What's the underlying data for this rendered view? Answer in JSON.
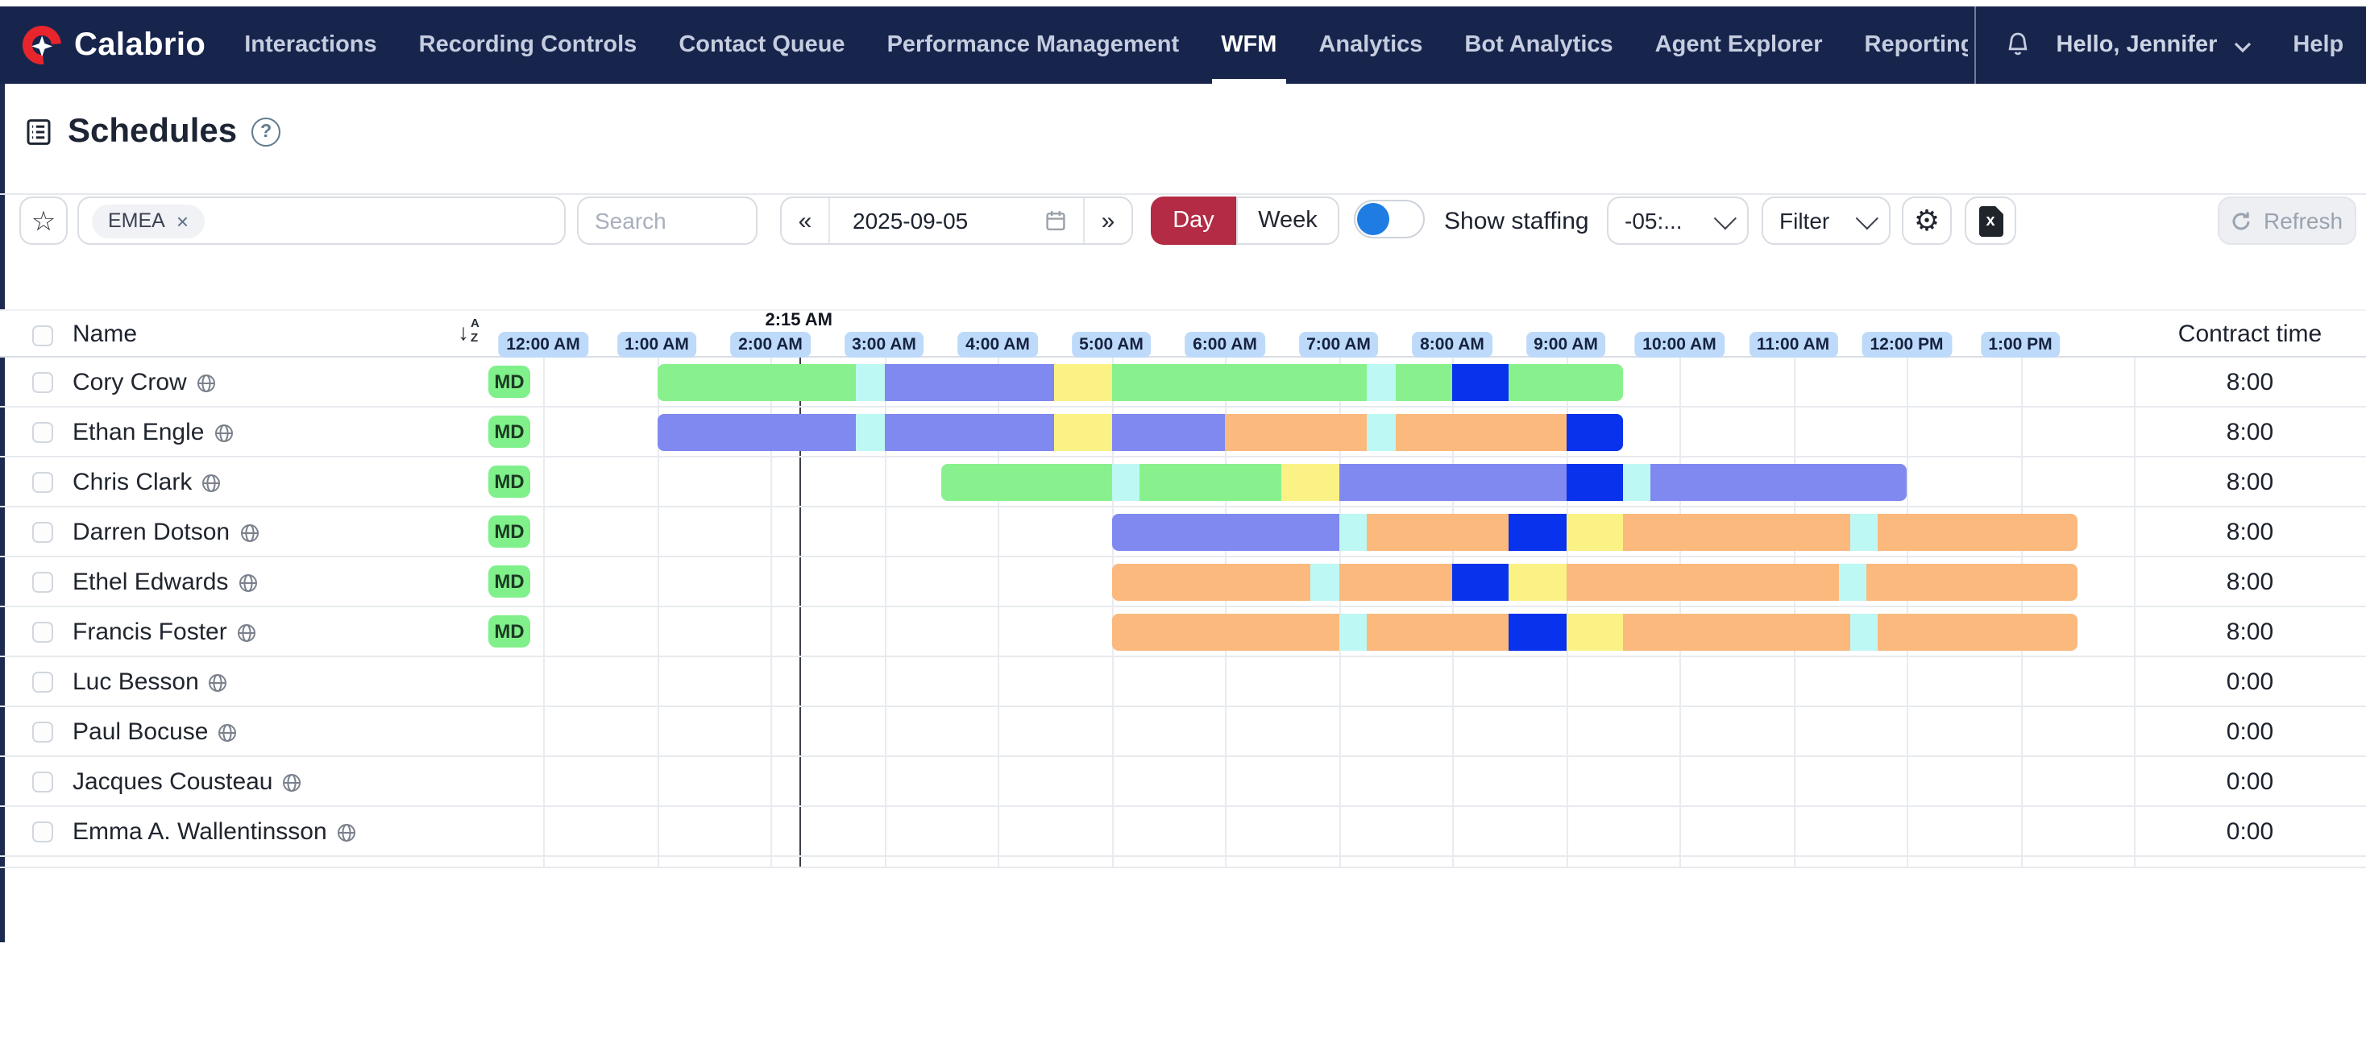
{
  "nav": {
    "brand": "Calabrio",
    "items": [
      {
        "label": "Interactions"
      },
      {
        "label": "Recording Controls"
      },
      {
        "label": "Contact Queue"
      },
      {
        "label": "Performance Management"
      },
      {
        "label": "WFM",
        "active": true
      },
      {
        "label": "Analytics"
      },
      {
        "label": "Bot Analytics"
      },
      {
        "label": "Agent Explorer"
      },
      {
        "label": "Reporting",
        "clipped": true
      }
    ],
    "greeting": "Hello, Jennifer",
    "help_label": "Help"
  },
  "page": {
    "title": "Schedules",
    "help_glyph": "?"
  },
  "toolbar": {
    "filter_chip": "EMEA",
    "chip_remove_glyph": "×",
    "search_placeholder": "Search",
    "prev_glyph": "«",
    "next_glyph": "»",
    "date_value": "2025-09-05",
    "day_label": "Day",
    "week_label": "Week",
    "show_staffing_label": "Show staffing",
    "timezone_value": "-05:...",
    "filter_label": "Filter",
    "star_glyph": "☆",
    "gear_glyph": "⚙",
    "refresh_label": "Refresh"
  },
  "table": {
    "name_header": "Name",
    "contract_header": "Contract time",
    "sort_arrow": "↓",
    "sort_a": "A",
    "sort_z": "Z",
    "time_labels": [
      "12:00 AM",
      "1:00 AM",
      "2:00 AM",
      "3:00 AM",
      "4:00 AM",
      "5:00 AM",
      "6:00 AM",
      "7:00 AM",
      "8:00 AM",
      "9:00 AM",
      "10:00 AM",
      "11:00 AM",
      "12:00 PM",
      "1:00 PM"
    ],
    "current_time_label": "2:15 AM",
    "current_time_hour": 2.25,
    "rows": [
      {
        "name": "Cory Crow",
        "badge": "MD",
        "contract": "8:00",
        "segments": [
          {
            "color": "green",
            "start": 1,
            "end": 2.75
          },
          {
            "color": "cyan",
            "start": 2.75,
            "end": 3
          },
          {
            "color": "periwinkle",
            "start": 3,
            "end": 4.5
          },
          {
            "color": "yellow",
            "start": 4.5,
            "end": 5
          },
          {
            "color": "green",
            "start": 5,
            "end": 7.25
          },
          {
            "color": "cyan",
            "start": 7.25,
            "end": 7.5
          },
          {
            "color": "green",
            "start": 7.5,
            "end": 8
          },
          {
            "color": "blue",
            "start": 8,
            "end": 8.5
          },
          {
            "color": "green",
            "start": 8.5,
            "end": 9.5
          }
        ]
      },
      {
        "name": "Ethan Engle",
        "badge": "MD",
        "contract": "8:00",
        "segments": [
          {
            "color": "periwinkle",
            "start": 1,
            "end": 2.75
          },
          {
            "color": "cyan",
            "start": 2.75,
            "end": 3
          },
          {
            "color": "periwinkle",
            "start": 3,
            "end": 4.5
          },
          {
            "color": "yellow",
            "start": 4.5,
            "end": 5
          },
          {
            "color": "periwinkle",
            "start": 5,
            "end": 6
          },
          {
            "color": "orange",
            "start": 6,
            "end": 7.25
          },
          {
            "color": "cyan",
            "start": 7.25,
            "end": 7.5
          },
          {
            "color": "orange",
            "start": 7.5,
            "end": 9
          },
          {
            "color": "blue",
            "start": 9,
            "end": 9.5
          }
        ]
      },
      {
        "name": "Chris Clark",
        "badge": "MD",
        "contract": "8:00",
        "segments": [
          {
            "color": "green",
            "start": 3.5,
            "end": 5
          },
          {
            "color": "cyan",
            "start": 5,
            "end": 5.25
          },
          {
            "color": "green",
            "start": 5.25,
            "end": 6.5
          },
          {
            "color": "yellow",
            "start": 6.5,
            "end": 7
          },
          {
            "color": "periwinkle",
            "start": 7,
            "end": 9
          },
          {
            "color": "blue",
            "start": 9,
            "end": 9.5
          },
          {
            "color": "cyan",
            "start": 9.5,
            "end": 9.75
          },
          {
            "color": "periwinkle",
            "start": 9.75,
            "end": 12
          }
        ]
      },
      {
        "name": "Darren Dotson",
        "badge": "MD",
        "contract": "8:00",
        "segments": [
          {
            "color": "periwinkle",
            "start": 5,
            "end": 7
          },
          {
            "color": "cyan",
            "start": 7,
            "end": 7.25
          },
          {
            "color": "orange",
            "start": 7.25,
            "end": 8.5
          },
          {
            "color": "blue",
            "start": 8.5,
            "end": 9
          },
          {
            "color": "yellow",
            "start": 9,
            "end": 9.5
          },
          {
            "color": "orange",
            "start": 9.5,
            "end": 11.5
          },
          {
            "color": "cyan",
            "start": 11.5,
            "end": 11.75
          },
          {
            "color": "orange",
            "start": 11.75,
            "end": 13.5
          }
        ]
      },
      {
        "name": "Ethel Edwards",
        "badge": "MD",
        "contract": "8:00",
        "segments": [
          {
            "color": "orange",
            "start": 5,
            "end": 6.75
          },
          {
            "color": "cyan",
            "start": 6.75,
            "end": 7
          },
          {
            "color": "orange",
            "start": 7,
            "end": 8
          },
          {
            "color": "blue",
            "start": 8,
            "end": 8.5
          },
          {
            "color": "yellow",
            "start": 8.5,
            "end": 9
          },
          {
            "color": "orange",
            "start": 9,
            "end": 11.4
          },
          {
            "color": "cyan",
            "start": 11.4,
            "end": 11.65
          },
          {
            "color": "orange",
            "start": 11.65,
            "end": 13.5
          }
        ]
      },
      {
        "name": "Francis Foster",
        "badge": "MD",
        "contract": "8:00",
        "segments": [
          {
            "color": "orange",
            "start": 5,
            "end": 7
          },
          {
            "color": "cyan",
            "start": 7,
            "end": 7.25
          },
          {
            "color": "orange",
            "start": 7.25,
            "end": 8.5
          },
          {
            "color": "blue",
            "start": 8.5,
            "end": 9
          },
          {
            "color": "yellow",
            "start": 9,
            "end": 9.5
          },
          {
            "color": "orange",
            "start": 9.5,
            "end": 11.5
          },
          {
            "color": "cyan",
            "start": 11.5,
            "end": 11.75
          },
          {
            "color": "orange",
            "start": 11.75,
            "end": 13.5
          }
        ]
      },
      {
        "name": "Luc Besson",
        "badge": null,
        "contract": "0:00",
        "segments": []
      },
      {
        "name": "Paul Bocuse",
        "badge": null,
        "contract": "0:00",
        "segments": []
      },
      {
        "name": "Jacques Cousteau",
        "badge": null,
        "contract": "0:00",
        "segments": []
      },
      {
        "name": "Emma A. Wallentinsson",
        "badge": null,
        "contract": "0:00",
        "segments": []
      }
    ]
  },
  "colors": {
    "nav_bg": "#17254d",
    "day_active": "#b42b45",
    "toggle_knob": "#1e7ce2",
    "time_chip_bg": "#bedafa",
    "badge_bg": "#7ff08a",
    "green": "#88f18e",
    "periwinkle": "#8089f0",
    "yellow": "#faf285",
    "cyan": "#bef8f4",
    "blue": "#0832ec",
    "orange": "#fbb97d"
  }
}
